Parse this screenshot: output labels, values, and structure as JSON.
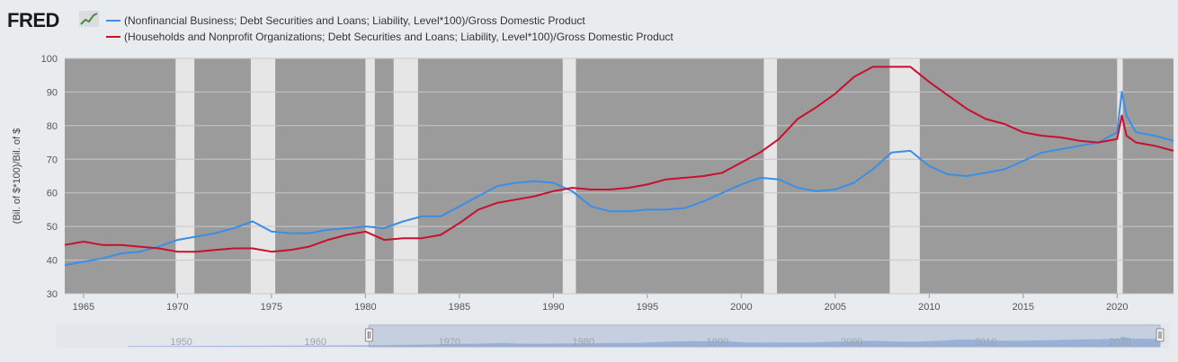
{
  "brand": {
    "logo_text": "FRED",
    "logo_mark": "chart-line-icon"
  },
  "colors": {
    "series1": "#3a8ee6",
    "series2": "#c8102e",
    "plot_bg": "#9b9b9b",
    "recession": "#e6e6e6",
    "page_bg": "#e9ecef"
  },
  "chart_data": {
    "type": "line",
    "xlabel": "",
    "ylabel": "(Bil. of $*100)/Bil. of $",
    "xlim": [
      1964,
      2023
    ],
    "ylim": [
      30,
      100
    ],
    "yticks": [
      30,
      40,
      50,
      60,
      70,
      80,
      90,
      100
    ],
    "xticks": [
      1965,
      1970,
      1975,
      1980,
      1985,
      1990,
      1995,
      2000,
      2005,
      2010,
      2015,
      2020
    ],
    "grid": true,
    "legend": "top-left",
    "recessions": [
      [
        1969.9,
        1970.9
      ],
      [
        1973.9,
        1975.2
      ],
      [
        1980.0,
        1980.5
      ],
      [
        1981.5,
        1982.8
      ],
      [
        1990.5,
        1991.2
      ],
      [
        2001.2,
        2001.9
      ],
      [
        2007.9,
        2009.5
      ],
      [
        2020.0,
        2020.3
      ]
    ],
    "series": [
      {
        "name": "(Nonfinancial Business; Debt Securities and Loans; Liability, Level*100)/Gross Domestic Product",
        "x": [
          1964,
          1965,
          1966,
          1967,
          1968,
          1969,
          1970,
          1971,
          1972,
          1973,
          1974,
          1975,
          1976,
          1977,
          1978,
          1979,
          1980,
          1981,
          1982,
          1983,
          1984,
          1985,
          1986,
          1987,
          1988,
          1989,
          1990,
          1991,
          1992,
          1993,
          1994,
          1995,
          1996,
          1997,
          1998,
          1999,
          2000,
          2001,
          2002,
          2003,
          2004,
          2005,
          2006,
          2007,
          2008,
          2009,
          2010,
          2011,
          2012,
          2013,
          2014,
          2015,
          2016,
          2017,
          2018,
          2019,
          2020,
          2020.25,
          2020.5,
          2021,
          2022,
          2023
        ],
        "values": [
          38.5,
          39.5,
          40.5,
          42,
          42.5,
          44,
          46,
          47,
          48,
          49.5,
          51.5,
          48.5,
          48,
          48,
          49,
          49.5,
          50,
          49.5,
          51.5,
          53,
          53,
          56,
          59,
          62,
          63,
          63.5,
          63,
          60.5,
          56,
          54.5,
          54.5,
          55,
          55,
          55.5,
          57.5,
          60,
          62.5,
          64.5,
          64,
          61.5,
          60.5,
          61,
          63,
          67,
          72,
          72.5,
          68,
          65.5,
          65,
          66,
          67,
          69.5,
          72,
          73,
          74,
          75,
          78,
          90,
          83,
          78,
          77,
          75.5
        ]
      },
      {
        "name": "(Households and Nonprofit Organizations; Debt Securities and Loans; Liability, Level*100)/Gross Domestic Product",
        "x": [
          1964,
          1965,
          1966,
          1967,
          1968,
          1969,
          1970,
          1971,
          1972,
          1973,
          1974,
          1975,
          1976,
          1977,
          1978,
          1979,
          1980,
          1981,
          1982,
          1983,
          1984,
          1985,
          1986,
          1987,
          1988,
          1989,
          1990,
          1991,
          1992,
          1993,
          1994,
          1995,
          1996,
          1997,
          1998,
          1999,
          2000,
          2001,
          2002,
          2003,
          2004,
          2005,
          2006,
          2007,
          2008,
          2009,
          2010,
          2011,
          2012,
          2013,
          2014,
          2015,
          2016,
          2017,
          2018,
          2019,
          2020,
          2020.25,
          2020.5,
          2021,
          2022,
          2023
        ],
        "values": [
          44.5,
          45.5,
          44.5,
          44.5,
          44,
          43.5,
          42.5,
          42.5,
          43,
          43.5,
          43.5,
          42.5,
          43,
          44,
          46,
          47.5,
          48.5,
          46,
          46.5,
          46.5,
          47.5,
          51,
          55,
          57,
          58,
          59,
          60.5,
          61.5,
          61,
          61,
          61.5,
          62.5,
          64,
          64.5,
          65,
          66,
          69,
          72,
          76,
          82,
          85.5,
          89.5,
          94.5,
          97.5,
          97.5,
          97.5,
          93,
          89,
          85,
          82,
          80.5,
          78,
          77,
          76.5,
          75.5,
          75,
          76,
          83,
          77,
          75,
          74,
          72.5
        ]
      }
    ]
  },
  "navigator": {
    "xticks": [
      1950,
      1960,
      1970,
      1980,
      1990,
      2000,
      2010,
      2020
    ],
    "range": [
      1964,
      2023
    ],
    "full_range": [
      1946,
      2023
    ]
  }
}
